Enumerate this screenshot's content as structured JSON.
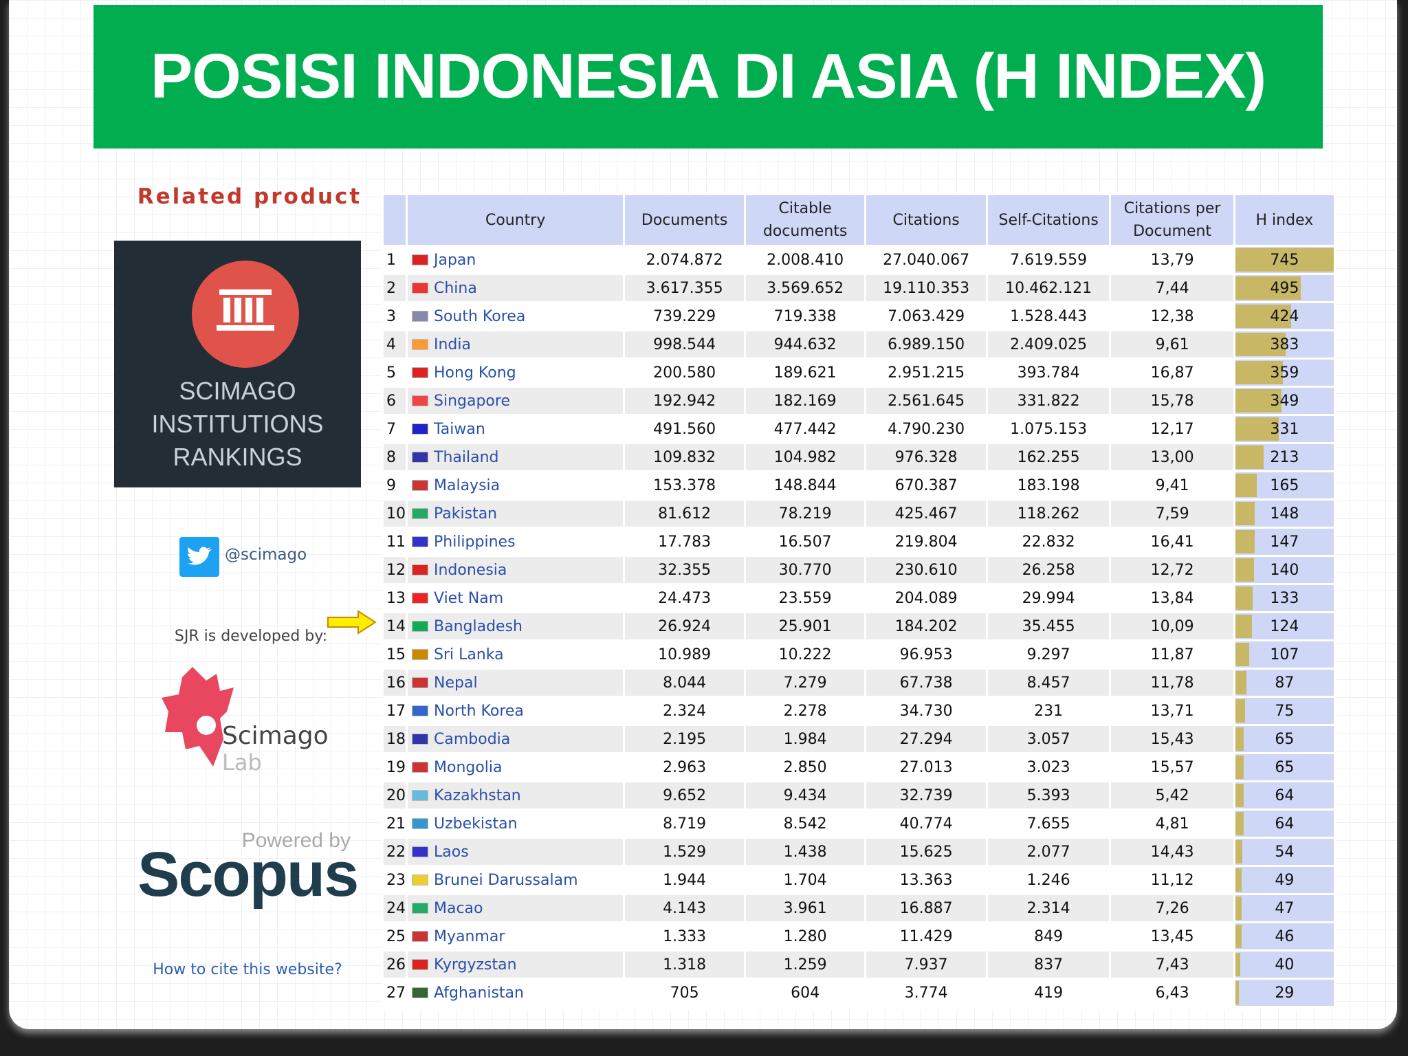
{
  "header": {
    "title": "POSISI INDONESIA DI ASIA (H INDEX)"
  },
  "sidebar": {
    "related": "Related product",
    "logo_lines": [
      "SCIMAGO",
      "INSTITUTIONS",
      "RANKINGS"
    ],
    "twitter": "@scimago",
    "developed_by": "SJR is developed by:",
    "lab_name": "Scimago",
    "lab_sub": "Lab",
    "powered_by": "Powered by",
    "scopus": "Scopus",
    "cite": "How to cite this website?"
  },
  "table": {
    "columns": [
      "Country",
      "Documents",
      "Citable documents",
      "Citations",
      "Self-Citations",
      "Citations per Document",
      "H index"
    ],
    "rows": [
      [
        "1",
        "Japan",
        "2.074.872",
        "2.008.410",
        "27.040.067",
        "7.619.559",
        "13,79",
        "745"
      ],
      [
        "2",
        "China",
        "3.617.355",
        "3.569.652",
        "19.110.353",
        "10.462.121",
        "7,44",
        "495"
      ],
      [
        "3",
        "South Korea",
        "739.229",
        "719.338",
        "7.063.429",
        "1.528.443",
        "12,38",
        "424"
      ],
      [
        "4",
        "India",
        "998.544",
        "944.632",
        "6.989.150",
        "2.409.025",
        "9,61",
        "383"
      ],
      [
        "5",
        "Hong Kong",
        "200.580",
        "189.621",
        "2.951.215",
        "393.784",
        "16,87",
        "359"
      ],
      [
        "6",
        "Singapore",
        "192.942",
        "182.169",
        "2.561.645",
        "331.822",
        "15,78",
        "349"
      ],
      [
        "7",
        "Taiwan",
        "491.560",
        "477.442",
        "4.790.230",
        "1.075.153",
        "12,17",
        "331"
      ],
      [
        "8",
        "Thailand",
        "109.832",
        "104.982",
        "976.328",
        "162.255",
        "13,00",
        "213"
      ],
      [
        "9",
        "Malaysia",
        "153.378",
        "148.844",
        "670.387",
        "183.198",
        "9,41",
        "165"
      ],
      [
        "10",
        "Pakistan",
        "81.612",
        "78.219",
        "425.467",
        "118.262",
        "7,59",
        "148"
      ],
      [
        "11",
        "Philippines",
        "17.783",
        "16.507",
        "219.804",
        "22.832",
        "16,41",
        "147"
      ],
      [
        "12",
        "Indonesia",
        "32.355",
        "30.770",
        "230.610",
        "26.258",
        "12,72",
        "140"
      ],
      [
        "13",
        "Viet Nam",
        "24.473",
        "23.559",
        "204.089",
        "29.994",
        "13,84",
        "133"
      ],
      [
        "14",
        "Bangladesh",
        "26.924",
        "25.901",
        "184.202",
        "35.455",
        "10,09",
        "124"
      ],
      [
        "15",
        "Sri Lanka",
        "10.989",
        "10.222",
        "96.953",
        "9.297",
        "11,87",
        "107"
      ],
      [
        "16",
        "Nepal",
        "8.044",
        "7.279",
        "67.738",
        "8.457",
        "11,78",
        "87"
      ],
      [
        "17",
        "North Korea",
        "2.324",
        "2.278",
        "34.730",
        "231",
        "13,71",
        "75"
      ],
      [
        "18",
        "Cambodia",
        "2.195",
        "1.984",
        "27.294",
        "3.057",
        "15,43",
        "65"
      ],
      [
        "19",
        "Mongolia",
        "2.963",
        "2.850",
        "27.013",
        "3.023",
        "15,57",
        "65"
      ],
      [
        "20",
        "Kazakhstan",
        "9.652",
        "9.434",
        "32.739",
        "5.393",
        "5,42",
        "64"
      ],
      [
        "21",
        "Uzbekistan",
        "8.719",
        "8.542",
        "40.774",
        "7.655",
        "4,81",
        "64"
      ],
      [
        "22",
        "Laos",
        "1.529",
        "1.438",
        "15.625",
        "2.077",
        "14,43",
        "54"
      ],
      [
        "23",
        "Brunei Darussalam",
        "1.944",
        "1.704",
        "13.363",
        "1.246",
        "11,12",
        "49"
      ],
      [
        "24",
        "Macao",
        "4.143",
        "3.961",
        "16.887",
        "2.314",
        "7,26",
        "47"
      ],
      [
        "25",
        "Myanmar",
        "1.333",
        "1.280",
        "11.429",
        "849",
        "13,45",
        "46"
      ],
      [
        "26",
        "Kyrgyzstan",
        "1.318",
        "1.259",
        "7.937",
        "837",
        "7,43",
        "40"
      ],
      [
        "27",
        "Afghanistan",
        "705",
        "604",
        "3.774",
        "419",
        "6,43",
        "29"
      ]
    ]
  }
}
